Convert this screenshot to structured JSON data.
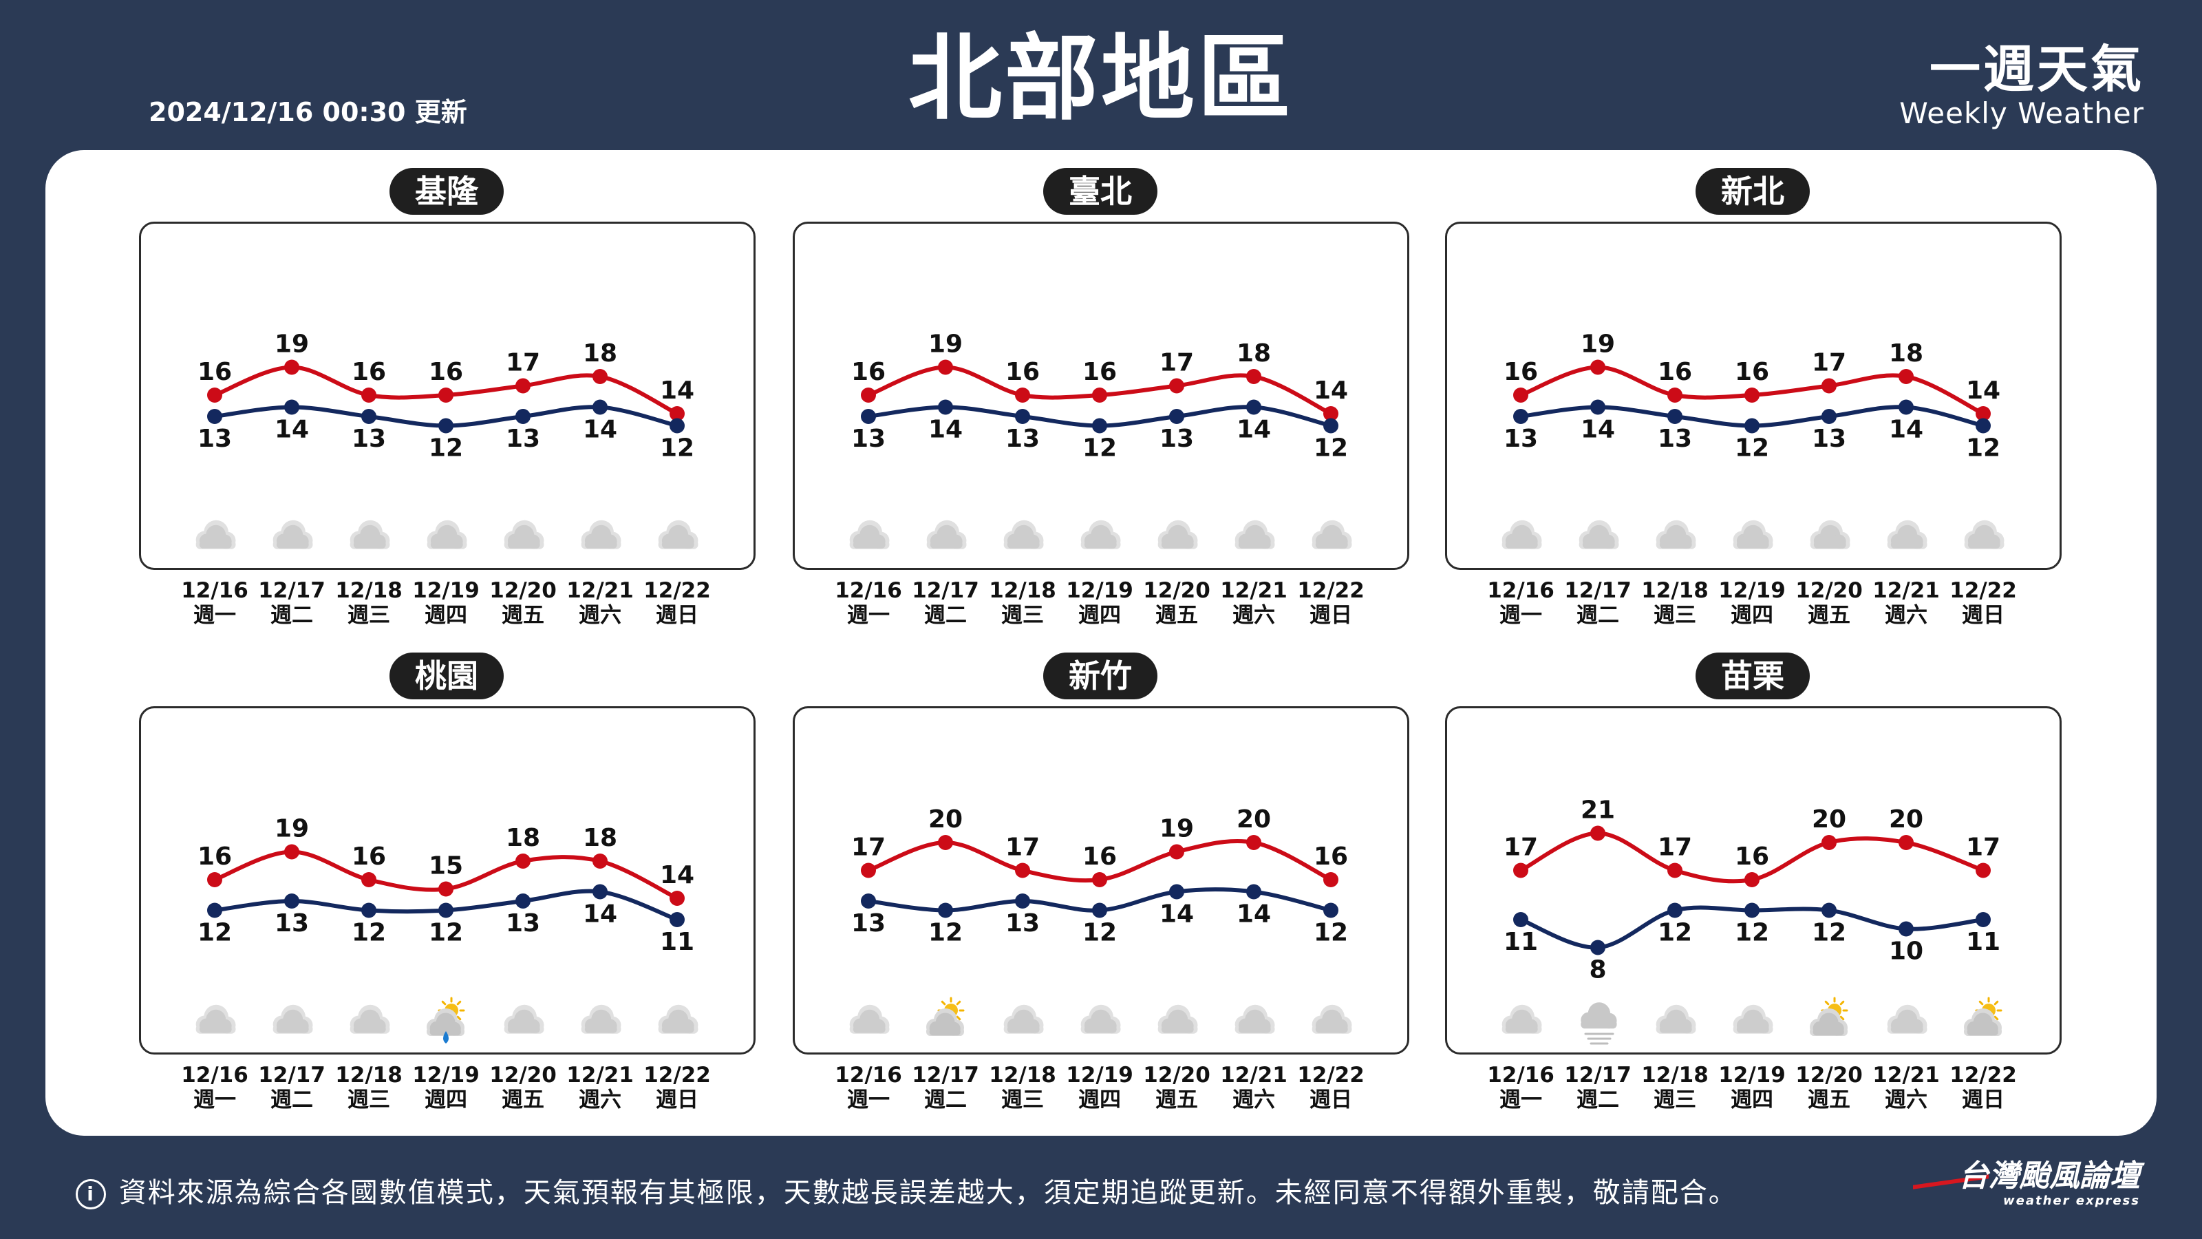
{
  "header": {
    "title": "北部地區",
    "update_time": "2024/12/16 00:30 更新",
    "brand_zh": "一週天氣",
    "brand_en": "Weekly Weather"
  },
  "footer": {
    "info_icon": "i",
    "note": "資料來源為綜合各國數值模式，天氣預報有其極限，天數越長誤差越大，須定期追蹤更新。未經同意不得額外重製，敬請配合。",
    "logo_zh": "台灣颱風論壇",
    "logo_en": "weather express"
  },
  "colors": {
    "high": "#cc0b17",
    "low": "#13285e",
    "background": "#2b3a55"
  },
  "chart_data": [
    {
      "type": "line",
      "title": "基隆",
      "categories": [
        "12/16",
        "12/17",
        "12/18",
        "12/19",
        "12/20",
        "12/21",
        "12/22"
      ],
      "weekdays": [
        "週一",
        "週二",
        "週三",
        "週四",
        "週五",
        "週六",
        "週日"
      ],
      "series": [
        {
          "values": [
            16,
            19,
            16,
            16,
            17,
            18,
            14
          ]
        },
        {
          "values": [
            13,
            14,
            13,
            12,
            13,
            14,
            12
          ]
        }
      ],
      "icons": [
        "cloud-icon",
        "cloud-icon",
        "cloud-icon",
        "cloud-icon",
        "cloud-icon",
        "cloud-icon",
        "cloud-icon"
      ]
    },
    {
      "type": "line",
      "title": "臺北",
      "categories": [
        "12/16",
        "12/17",
        "12/18",
        "12/19",
        "12/20",
        "12/21",
        "12/22"
      ],
      "weekdays": [
        "週一",
        "週二",
        "週三",
        "週四",
        "週五",
        "週六",
        "週日"
      ],
      "series": [
        {
          "values": [
            16,
            19,
            16,
            16,
            17,
            18,
            14
          ]
        },
        {
          "values": [
            13,
            14,
            13,
            12,
            13,
            14,
            12
          ]
        }
      ],
      "icons": [
        "cloud-icon",
        "cloud-icon",
        "cloud-icon",
        "cloud-icon",
        "cloud-icon",
        "cloud-icon",
        "cloud-icon"
      ]
    },
    {
      "type": "line",
      "title": "新北",
      "categories": [
        "12/16",
        "12/17",
        "12/18",
        "12/19",
        "12/20",
        "12/21",
        "12/22"
      ],
      "weekdays": [
        "週一",
        "週二",
        "週三",
        "週四",
        "週五",
        "週六",
        "週日"
      ],
      "series": [
        {
          "values": [
            16,
            19,
            16,
            16,
            17,
            18,
            14
          ]
        },
        {
          "values": [
            13,
            14,
            13,
            12,
            13,
            14,
            12
          ]
        }
      ],
      "icons": [
        "cloud-icon",
        "cloud-icon",
        "cloud-icon",
        "cloud-icon",
        "cloud-icon",
        "cloud-icon",
        "cloud-icon"
      ]
    },
    {
      "type": "line",
      "title": "桃園",
      "categories": [
        "12/16",
        "12/17",
        "12/18",
        "12/19",
        "12/20",
        "12/21",
        "12/22"
      ],
      "weekdays": [
        "週一",
        "週二",
        "週三",
        "週四",
        "週五",
        "週六",
        "週日"
      ],
      "series": [
        {
          "values": [
            16,
            19,
            16,
            15,
            18,
            18,
            14
          ]
        },
        {
          "values": [
            12,
            13,
            12,
            12,
            13,
            14,
            11
          ]
        }
      ],
      "icons": [
        "cloud-icon",
        "cloud-icon",
        "cloud-icon",
        "sun-rain-icon",
        "cloud-icon",
        "cloud-icon",
        "cloud-icon"
      ]
    },
    {
      "type": "line",
      "title": "新竹",
      "categories": [
        "12/16",
        "12/17",
        "12/18",
        "12/19",
        "12/20",
        "12/21",
        "12/22"
      ],
      "weekdays": [
        "週一",
        "週二",
        "週三",
        "週四",
        "週五",
        "週六",
        "週日"
      ],
      "series": [
        {
          "values": [
            17,
            20,
            17,
            16,
            19,
            20,
            16
          ]
        },
        {
          "values": [
            13,
            12,
            13,
            12,
            14,
            14,
            12
          ]
        }
      ],
      "icons": [
        "cloud-icon",
        "sun-cloud-icon",
        "cloud-icon",
        "cloud-icon",
        "cloud-icon",
        "cloud-icon",
        "cloud-icon"
      ]
    },
    {
      "type": "line",
      "title": "苗栗",
      "categories": [
        "12/16",
        "12/17",
        "12/18",
        "12/19",
        "12/20",
        "12/21",
        "12/22"
      ],
      "weekdays": [
        "週一",
        "週二",
        "週三",
        "週四",
        "週五",
        "週六",
        "週日"
      ],
      "series": [
        {
          "values": [
            17,
            21,
            17,
            16,
            20,
            20,
            17
          ]
        },
        {
          "values": [
            11,
            8,
            12,
            12,
            12,
            10,
            11
          ]
        }
      ],
      "icons": [
        "cloud-icon",
        "fog-icon",
        "cloud-icon",
        "cloud-icon",
        "sun-cloud-icon",
        "cloud-icon",
        "sun-cloud-icon"
      ]
    }
  ]
}
